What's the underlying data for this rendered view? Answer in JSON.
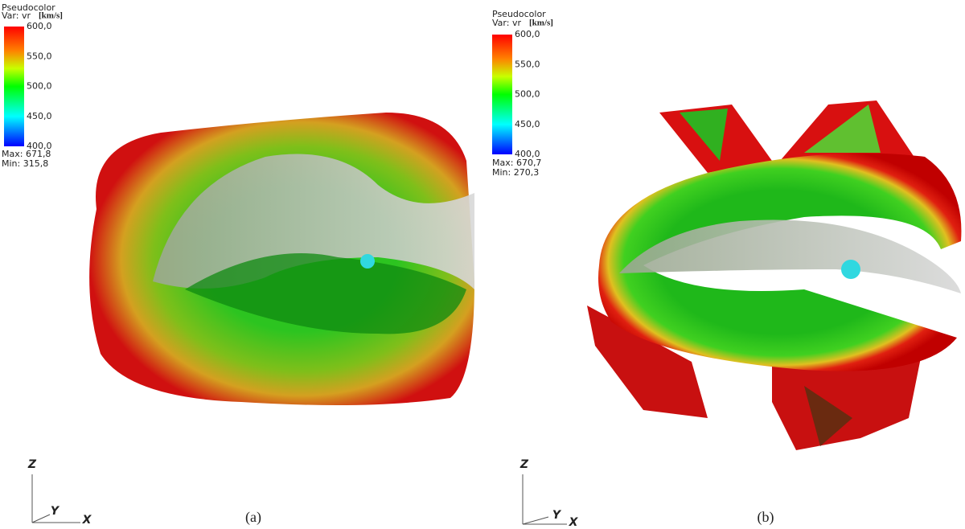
{
  "panels": [
    {
      "legend": {
        "title": "Pseudocolor",
        "variable": "Var: vr",
        "unit": "[km/s]",
        "ticks": [
          "600,0",
          "550,0",
          "500,0",
          "450,0",
          "400,0"
        ],
        "max": "Max: 671,8",
        "min": "Min: 315,8"
      },
      "axes": {
        "z": "Z",
        "y": "Y",
        "x": "X"
      },
      "caption": "(a)"
    },
    {
      "legend": {
        "title": "Pseudocolor",
        "variable": "Var: vr",
        "unit": "[km/s]",
        "ticks": [
          "600,0",
          "550,0",
          "500,0",
          "450,0",
          "400,0"
        ],
        "max": "Max: 670,7",
        "min": "Min: 270,3"
      },
      "axes": {
        "z": "Z",
        "y": "Y",
        "x": "X"
      },
      "caption": "(b)"
    }
  ]
}
